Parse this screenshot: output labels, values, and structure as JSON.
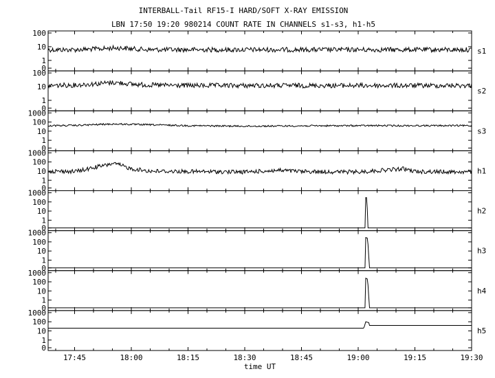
{
  "chart_data": {
    "type": "line",
    "title": "INTERBALL-Tail RF15-I HARD/SOFT X-RAY EMISSION",
    "subtitle": "LBN 17:50 19:20 980214  COUNT RATE IN CHANNELS s1-s3, h1-h5",
    "xlabel": "time UT",
    "x_ticks": [
      "17:45",
      "18:00",
      "18:15",
      "18:30",
      "18:45",
      "19:00",
      "19:15",
      "19:30"
    ],
    "x_range": [
      "17:38",
      "19:30"
    ],
    "y_scale": "log",
    "panels": [
      {
        "name": "s1",
        "y_ticks": [
          "100",
          "10",
          "1",
          "0"
        ],
        "x": [
          "17:38",
          "17:45",
          "17:52",
          "17:55",
          "17:58",
          "18:00",
          "18:05",
          "18:15",
          "18:30",
          "18:45",
          "19:00",
          "19:15",
          "19:30"
        ],
        "y": [
          6,
          6,
          7,
          8,
          8,
          7,
          6,
          6,
          6,
          6,
          6,
          6,
          6
        ]
      },
      {
        "name": "s2",
        "y_ticks": [
          "100",
          "10",
          "1",
          "0"
        ],
        "x": [
          "17:38",
          "17:45",
          "17:52",
          "17:55",
          "17:58",
          "18:00",
          "18:05",
          "18:15",
          "18:30",
          "18:45",
          "19:00",
          "19:15",
          "19:30"
        ],
        "y": [
          12,
          13,
          17,
          20,
          18,
          15,
          13,
          12,
          12,
          12,
          12,
          12,
          12
        ]
      },
      {
        "name": "s3",
        "y_ticks": [
          "1000",
          "100",
          "10",
          "1",
          "0"
        ],
        "x": [
          "17:38",
          "17:45",
          "17:52",
          "17:55",
          "17:58",
          "18:00",
          "18:05",
          "18:15",
          "18:30",
          "18:45",
          "19:00",
          "19:15",
          "19:30"
        ],
        "y": [
          40,
          42,
          55,
          60,
          58,
          55,
          50,
          40,
          35,
          38,
          40,
          40,
          40
        ]
      },
      {
        "name": "h1",
        "y_ticks": [
          "1000",
          "100",
          "10",
          "1",
          "0"
        ],
        "x": [
          "17:38",
          "17:45",
          "17:48",
          "17:51",
          "17:53",
          "17:55",
          "17:57",
          "18:00",
          "18:05",
          "18:15",
          "18:30",
          "18:39",
          "18:45",
          "19:00",
          "19:12",
          "19:15",
          "19:30"
        ],
        "y": [
          10,
          9,
          15,
          30,
          40,
          70,
          45,
          18,
          10,
          9,
          8,
          12,
          9,
          8,
          18,
          9,
          8
        ]
      },
      {
        "name": "h2",
        "y_ticks": [
          "1000",
          "100",
          "10",
          "1",
          "0"
        ],
        "x": [
          "17:38",
          "19:01.8",
          "19:02",
          "19:02.3",
          "19:02.6",
          "19:30"
        ],
        "y": [
          0,
          0,
          300,
          300,
          0,
          0
        ]
      },
      {
        "name": "h3",
        "y_ticks": [
          "1000",
          "100",
          "10",
          "1",
          "0"
        ],
        "x": [
          "17:38",
          "19:01.8",
          "19:02",
          "19:02.5",
          "19:03",
          "19:30"
        ],
        "y": [
          0,
          0,
          300,
          250,
          0,
          0
        ]
      },
      {
        "name": "h4",
        "y_ticks": [
          "1000",
          "100",
          "10",
          "1",
          "0"
        ],
        "x": [
          "17:38",
          "19:01.8",
          "19:02",
          "19:02.5",
          "19:03",
          "19:30"
        ],
        "y": [
          0,
          0,
          250,
          200,
          0,
          0
        ]
      },
      {
        "name": "h5",
        "y_ticks": [
          "1000",
          "100",
          "10",
          "1",
          "0"
        ],
        "x": [
          "17:38",
          "19:01.5",
          "19:02",
          "19:02.8",
          "19:03",
          "19:30"
        ],
        "y": [
          20,
          20,
          100,
          80,
          40,
          40
        ]
      }
    ]
  }
}
